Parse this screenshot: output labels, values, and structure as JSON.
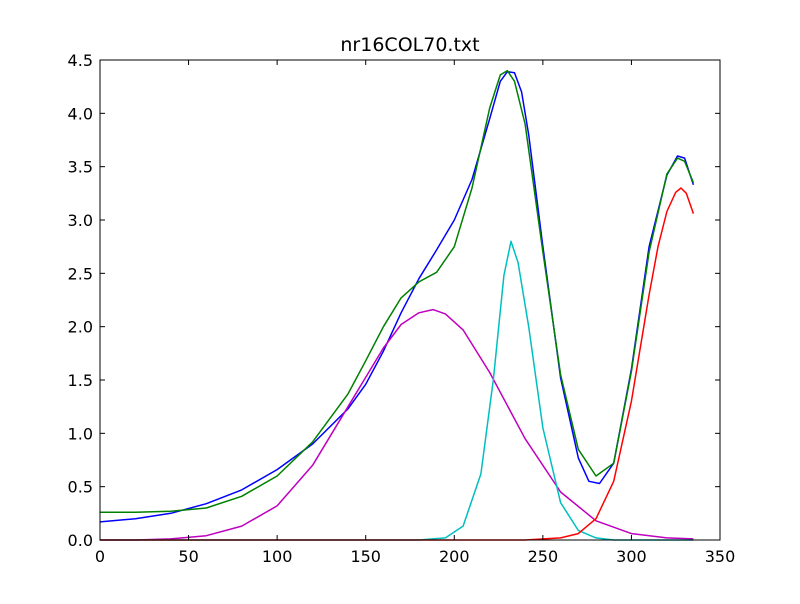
{
  "chart_data": {
    "type": "line",
    "title": "nr16COL70.txt",
    "xlabel": "",
    "ylabel": "",
    "xlim": [
      0,
      350
    ],
    "ylim": [
      0,
      4.5
    ],
    "xticks": [
      0,
      50,
      100,
      150,
      200,
      250,
      300,
      350
    ],
    "xtick_labels": [
      "0",
      "50",
      "100",
      "150",
      "200",
      "250",
      "300",
      "350"
    ],
    "yticks": [
      0.0,
      0.5,
      1.0,
      1.5,
      2.0,
      2.5,
      3.0,
      3.5,
      4.0,
      4.5
    ],
    "ytick_labels": [
      "0.0",
      "0.5",
      "1.0",
      "1.5",
      "2.0",
      "2.5",
      "3.0",
      "3.5",
      "4.0",
      "4.5"
    ],
    "grid": false,
    "legend": "none",
    "series": [
      {
        "color": "#0000ff",
        "x": [
          0,
          20,
          40,
          60,
          80,
          100,
          120,
          140,
          150,
          160,
          170,
          180,
          190,
          200,
          210,
          220,
          226,
          230,
          234,
          238,
          242,
          250,
          260,
          270,
          276,
          282,
          290,
          300,
          310,
          320,
          326,
          330,
          335
        ],
        "y": [
          0.17,
          0.2,
          0.25,
          0.34,
          0.47,
          0.66,
          0.9,
          1.23,
          1.46,
          1.77,
          2.13,
          2.45,
          2.72,
          3.0,
          3.38,
          3.95,
          4.3,
          4.39,
          4.38,
          4.2,
          3.8,
          2.75,
          1.52,
          0.77,
          0.55,
          0.53,
          0.72,
          1.6,
          2.75,
          3.42,
          3.6,
          3.58,
          3.33
        ]
      },
      {
        "color": "#008000",
        "x": [
          0,
          20,
          40,
          60,
          80,
          100,
          120,
          140,
          150,
          160,
          170,
          180,
          190,
          200,
          210,
          220,
          226,
          230,
          234,
          240,
          250,
          260,
          270,
          280,
          290,
          300,
          310,
          320,
          326,
          330,
          335
        ],
        "y": [
          0.26,
          0.26,
          0.27,
          0.3,
          0.41,
          0.6,
          0.92,
          1.37,
          1.68,
          2.0,
          2.27,
          2.42,
          2.51,
          2.75,
          3.3,
          4.05,
          4.36,
          4.4,
          4.3,
          3.9,
          2.7,
          1.55,
          0.85,
          0.6,
          0.72,
          1.58,
          2.7,
          3.43,
          3.58,
          3.55,
          3.35
        ]
      },
      {
        "color": "#bf00bf",
        "x": [
          0,
          20,
          40,
          60,
          80,
          100,
          120,
          140,
          160,
          170,
          180,
          188,
          195,
          205,
          220,
          240,
          260,
          280,
          300,
          320,
          335
        ],
        "y": [
          0.0,
          0.0,
          0.01,
          0.04,
          0.13,
          0.32,
          0.7,
          1.25,
          1.8,
          2.02,
          2.13,
          2.16,
          2.12,
          1.97,
          1.57,
          0.95,
          0.45,
          0.18,
          0.06,
          0.02,
          0.01
        ]
      },
      {
        "color": "#00bfbf",
        "x": [
          0,
          180,
          195,
          205,
          215,
          222,
          228,
          232,
          236,
          242,
          250,
          260,
          270,
          280,
          290,
          335
        ],
        "y": [
          0.0,
          0.0,
          0.02,
          0.13,
          0.62,
          1.5,
          2.48,
          2.8,
          2.6,
          2.0,
          1.05,
          0.35,
          0.09,
          0.02,
          0.0,
          0.0
        ]
      },
      {
        "color": "#ff0000",
        "x": [
          0,
          240,
          260,
          270,
          280,
          290,
          300,
          310,
          315,
          320,
          325,
          328,
          331,
          335
        ],
        "y": [
          0.0,
          0.0,
          0.02,
          0.06,
          0.2,
          0.55,
          1.3,
          2.3,
          2.75,
          3.08,
          3.26,
          3.3,
          3.25,
          3.06
        ]
      }
    ]
  }
}
